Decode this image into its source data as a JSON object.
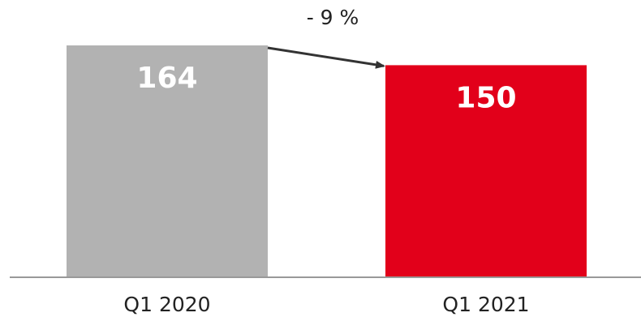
{
  "chart_data": {
    "type": "bar",
    "categories": [
      "Q1 2020",
      "Q1 2021"
    ],
    "values": [
      164,
      150
    ],
    "data_labels": [
      "164",
      "150"
    ],
    "bar_colors": [
      "#b2b2b2",
      "#e2001a"
    ],
    "change_annotation": "- 9 %",
    "ylim": [
      0,
      164
    ],
    "grid": false,
    "legend": "none"
  }
}
